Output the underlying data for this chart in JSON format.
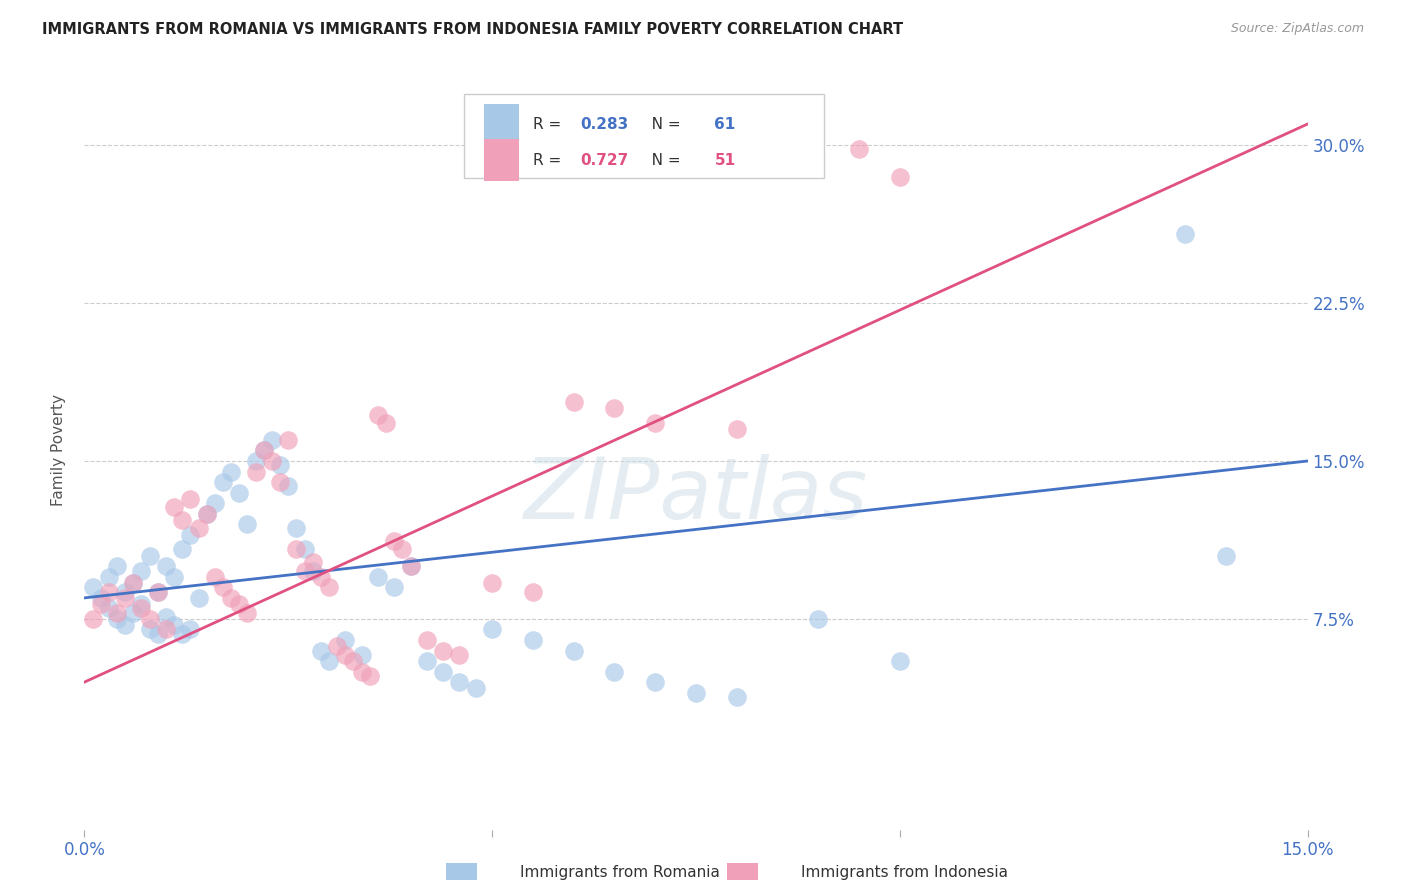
{
  "title": "IMMIGRANTS FROM ROMANIA VS IMMIGRANTS FROM INDONESIA FAMILY POVERTY CORRELATION CHART",
  "source": "Source: ZipAtlas.com",
  "ylabel_label": "Family Poverty",
  "x_range": [
    0.0,
    0.15
  ],
  "y_range": [
    -0.025,
    0.335
  ],
  "romania_R": 0.283,
  "romania_N": 61,
  "indonesia_R": 0.727,
  "indonesia_N": 51,
  "romania_color": "#a8c8e8",
  "indonesia_color": "#f0a0b8",
  "romania_line_color": "#4472c4",
  "indonesia_line_color": "#e05080",
  "legend_romania_label": "Immigrants from Romania",
  "legend_indonesia_label": "Immigrants from Indonesia",
  "watermark_text": "ZIPatlas",
  "romania_x": [
    0.001,
    0.002,
    0.003,
    0.003,
    0.004,
    0.004,
    0.005,
    0.005,
    0.006,
    0.006,
    0.007,
    0.007,
    0.008,
    0.008,
    0.009,
    0.009,
    0.01,
    0.01,
    0.011,
    0.011,
    0.012,
    0.012,
    0.013,
    0.013,
    0.014,
    0.015,
    0.016,
    0.017,
    0.018,
    0.019,
    0.02,
    0.021,
    0.022,
    0.023,
    0.024,
    0.025,
    0.026,
    0.027,
    0.028,
    0.029,
    0.03,
    0.032,
    0.034,
    0.036,
    0.038,
    0.04,
    0.042,
    0.044,
    0.046,
    0.048,
    0.05,
    0.055,
    0.06,
    0.065,
    0.07,
    0.075,
    0.08,
    0.09,
    0.1,
    0.135,
    0.14
  ],
  "romania_y": [
    0.09,
    0.085,
    0.095,
    0.08,
    0.1,
    0.075,
    0.088,
    0.072,
    0.092,
    0.078,
    0.098,
    0.082,
    0.105,
    0.07,
    0.088,
    0.068,
    0.1,
    0.076,
    0.095,
    0.072,
    0.108,
    0.068,
    0.115,
    0.07,
    0.085,
    0.125,
    0.13,
    0.14,
    0.145,
    0.135,
    0.12,
    0.15,
    0.155,
    0.16,
    0.148,
    0.138,
    0.118,
    0.108,
    0.098,
    0.06,
    0.055,
    0.065,
    0.058,
    0.095,
    0.09,
    0.1,
    0.055,
    0.05,
    0.045,
    0.042,
    0.07,
    0.065,
    0.06,
    0.05,
    0.045,
    0.04,
    0.038,
    0.075,
    0.055,
    0.258,
    0.105
  ],
  "indonesia_x": [
    0.001,
    0.002,
    0.003,
    0.004,
    0.005,
    0.006,
    0.007,
    0.008,
    0.009,
    0.01,
    0.011,
    0.012,
    0.013,
    0.014,
    0.015,
    0.016,
    0.017,
    0.018,
    0.019,
    0.02,
    0.021,
    0.022,
    0.023,
    0.024,
    0.025,
    0.026,
    0.027,
    0.028,
    0.029,
    0.03,
    0.031,
    0.032,
    0.033,
    0.034,
    0.035,
    0.036,
    0.037,
    0.038,
    0.039,
    0.04,
    0.042,
    0.044,
    0.046,
    0.05,
    0.055,
    0.06,
    0.065,
    0.07,
    0.08,
    0.095,
    0.1
  ],
  "indonesia_y": [
    0.075,
    0.082,
    0.088,
    0.078,
    0.085,
    0.092,
    0.08,
    0.075,
    0.088,
    0.07,
    0.128,
    0.122,
    0.132,
    0.118,
    0.125,
    0.095,
    0.09,
    0.085,
    0.082,
    0.078,
    0.145,
    0.155,
    0.15,
    0.14,
    0.16,
    0.108,
    0.098,
    0.102,
    0.095,
    0.09,
    0.062,
    0.058,
    0.055,
    0.05,
    0.048,
    0.172,
    0.168,
    0.112,
    0.108,
    0.1,
    0.065,
    0.06,
    0.058,
    0.092,
    0.088,
    0.178,
    0.175,
    0.168,
    0.165,
    0.298,
    0.285
  ],
  "romania_line_x0": 0.0,
  "romania_line_x1": 0.15,
  "romania_line_y0": 0.085,
  "romania_line_y1": 0.15,
  "indonesia_line_x0": 0.0,
  "indonesia_line_x1": 0.15,
  "indonesia_line_y0": 0.045,
  "indonesia_line_y1": 0.31,
  "x_ticks": [
    0.0,
    0.05,
    0.1,
    0.15
  ],
  "x_tick_labels": [
    "0.0%",
    "",
    "",
    "15.0%"
  ],
  "y_ticks": [
    0.075,
    0.15,
    0.225,
    0.3
  ],
  "y_tick_labels": [
    "7.5%",
    "15.0%",
    "22.5%",
    "30.0%"
  ]
}
